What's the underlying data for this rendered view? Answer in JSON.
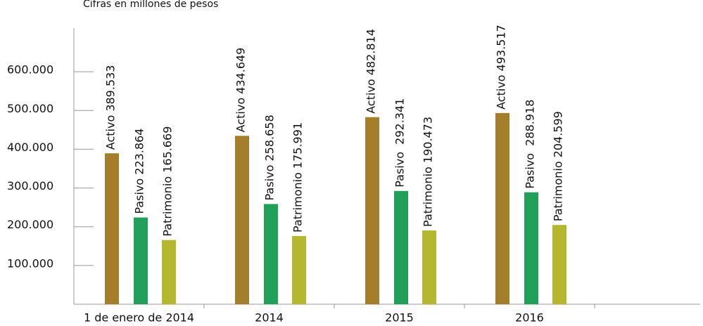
{
  "chart_data": {
    "type": "bar",
    "subtitle": "Cifras en millones de pesos",
    "categories": [
      "1 de enero de 2014",
      "2014",
      "2015",
      "2016"
    ],
    "series": [
      {
        "name": "Activo",
        "color": "#a47e2a",
        "values": [
          389533,
          434649,
          482814,
          493517
        ],
        "value_labels": [
          "Activo 389.533",
          "Activo 434.649",
          "Activo 482.814",
          "Activo 493.517"
        ]
      },
      {
        "name": "Pasivo",
        "color": "#21a05a",
        "values": [
          223864,
          258658,
          292341,
          288918
        ],
        "value_labels": [
          "Pasivo 223.864",
          "Pasivo 258.658",
          "Pasivo  292.341",
          "Pasivo  288.918"
        ]
      },
      {
        "name": "Patrimonio",
        "color": "#b5b82f",
        "values": [
          165669,
          175991,
          190473,
          204599
        ],
        "value_labels": [
          "Patrimonio 165.669",
          "Patrimonio 175.991",
          "Patrimonio 190.473",
          "Patrimonio 204.599"
        ]
      }
    ],
    "ylim": [
      0,
      700000
    ],
    "yticks": [
      {
        "value": 100000,
        "label": "100.000"
      },
      {
        "value": 200000,
        "label": "200.000"
      },
      {
        "value": 300000,
        "label": "300.000"
      },
      {
        "value": 400000,
        "label": "400.000"
      },
      {
        "value": 500000,
        "label": "500.000"
      },
      {
        "value": 600000,
        "label": "600.000"
      }
    ]
  }
}
